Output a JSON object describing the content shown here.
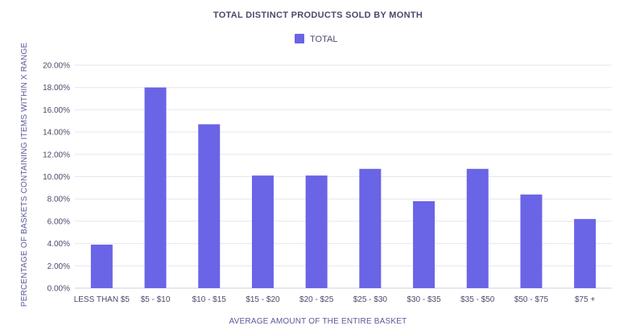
{
  "chart_data": {
    "type": "bar",
    "title": "TOTAL DISTINCT PRODUCTS SOLD BY MONTH",
    "xlabel": "AVERAGE AMOUNT OF THE ENTIRE BASKET",
    "ylabel": "PERCENTAGE OF BASKETS CONTAINING ITEMS WITHIN X RANGE",
    "categories": [
      "LESS THAN $5",
      "$5 - $10",
      "$10 - $15",
      "$15 - $20",
      "$20 - $25",
      "$25 - $30",
      "$30 - $35",
      "$35 - $50",
      "$50 - $75",
      "$75 +"
    ],
    "series": [
      {
        "name": "TOTAL",
        "values": [
          3.9,
          18.0,
          14.7,
          10.1,
          10.1,
          10.7,
          7.8,
          10.7,
          8.4,
          6.2
        ]
      }
    ],
    "ylim": [
      0,
      20
    ],
    "yticks": [
      "0.00%",
      "2.00%",
      "4.00%",
      "6.00%",
      "8.00%",
      "10.00%",
      "12.00%",
      "14.00%",
      "16.00%",
      "18.00%",
      "20.00%"
    ],
    "grid": true,
    "legend_position": "top-center",
    "colors": {
      "bar": "#6a64e6"
    }
  }
}
